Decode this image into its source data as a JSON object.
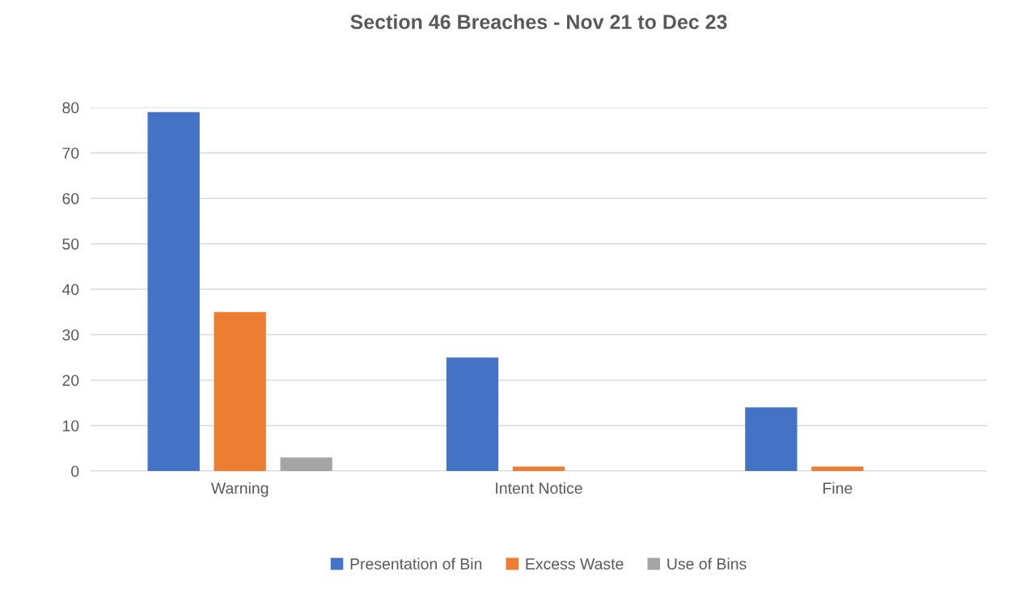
{
  "chart_data": {
    "type": "bar",
    "title": "Section 46 Breaches - Nov 21 to Dec 23",
    "categories": [
      "Warning",
      "Intent Notice",
      "Fine"
    ],
    "series": [
      {
        "name": "Presentation of Bin",
        "color": "#4472c4",
        "values": [
          79,
          25,
          14
        ]
      },
      {
        "name": "Excess Waste",
        "color": "#ed7d31",
        "values": [
          35,
          1,
          1
        ]
      },
      {
        "name": "Use of Bins",
        "color": "#a5a5a5",
        "values": [
          3,
          0,
          0
        ]
      }
    ],
    "ylim": [
      0,
      80
    ],
    "yticks": [
      0,
      10,
      20,
      30,
      40,
      50,
      60,
      70,
      80
    ],
    "grid": "y",
    "legend": "bottom"
  }
}
